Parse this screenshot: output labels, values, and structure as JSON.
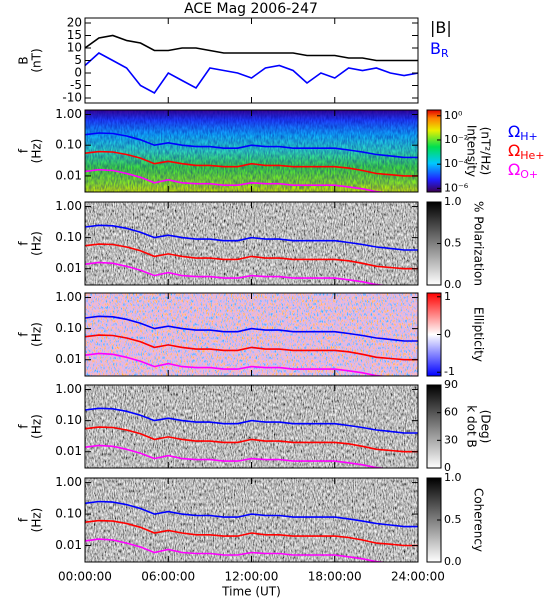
{
  "chart_data": [
    {
      "type": "line",
      "title": "ACE Mag 2006-247",
      "ylabel": [
        "B",
        "(nT)"
      ],
      "x": [
        0,
        1,
        2,
        3,
        4,
        5,
        6,
        7,
        8,
        9,
        10,
        11,
        12,
        13,
        14,
        15,
        16,
        17,
        18,
        19,
        20,
        21,
        22,
        23,
        24
      ],
      "xlim": [
        0,
        24
      ],
      "xticks": [
        0,
        6,
        12,
        18,
        24
      ],
      "ylim": [
        -12,
        22
      ],
      "yticks": [
        -10,
        -5,
        0,
        5,
        10,
        15,
        20
      ],
      "series": [
        {
          "name": "|B|",
          "color": "#000000",
          "values": [
            10,
            14,
            15,
            13,
            12,
            9,
            9,
            10,
            10,
            9,
            8,
            8,
            8,
            8,
            8,
            8,
            7,
            7,
            7,
            6,
            6,
            5,
            5,
            5,
            5
          ]
        },
        {
          "name": "B",
          "subscript": "R",
          "color": "#0000ff",
          "values": [
            3,
            8,
            5,
            2,
            -5,
            -8,
            0,
            -3,
            -6,
            2,
            1,
            0,
            -2,
            2,
            3,
            1,
            -4,
            0,
            -2,
            2,
            1,
            2,
            0,
            -1,
            0
          ]
        }
      ]
    },
    {
      "type": "spectrogram",
      "ylabel": [
        "f",
        "(Hz)"
      ],
      "log_y": true,
      "x": [
        0,
        1,
        2,
        3,
        4,
        5,
        6,
        7,
        8,
        9,
        10,
        11,
        12,
        13,
        14,
        15,
        16,
        17,
        18,
        19,
        20,
        21,
        22,
        23,
        24
      ],
      "xlim": [
        0,
        24
      ],
      "xticks": [
        0,
        6,
        12,
        18,
        24
      ],
      "ylim": [
        0.003,
        1.4
      ],
      "yticks": [
        0.01,
        {
          "value": 0.1,
          "label": "0.10"
        },
        {
          "value": 1,
          "label": "1.00"
        }
      ],
      "colorbar": {
        "label": [
          "Intensity",
          "(nT²/Hz)"
        ],
        "colormap": "rainbow",
        "log": true,
        "lim": [
          5e-07,
          3
        ],
        "ticks": [
          {
            "value": 1,
            "label": "10⁰"
          },
          {
            "value": 0.01,
            "label": "10⁻²"
          },
          {
            "value": 0.0001,
            "label": "10⁻⁴"
          },
          {
            "value": 1e-06,
            "label": "10⁻⁶"
          }
        ]
      },
      "series": [
        {
          "name": "Ω",
          "subscript": "H+",
          "color": "#0000ff",
          "values": [
            0.22,
            0.25,
            0.24,
            0.2,
            0.15,
            0.1,
            0.12,
            0.1,
            0.09,
            0.09,
            0.08,
            0.08,
            0.1,
            0.09,
            0.09,
            0.08,
            0.08,
            0.08,
            0.08,
            0.07,
            0.06,
            0.05,
            0.045,
            0.04,
            0.04
          ]
        },
        {
          "name": "Ω",
          "subscript": "He+",
          "color": "#ff0000",
          "values": [
            0.055,
            0.062,
            0.06,
            0.05,
            0.038,
            0.025,
            0.03,
            0.025,
            0.022,
            0.022,
            0.02,
            0.02,
            0.025,
            0.022,
            0.022,
            0.02,
            0.02,
            0.02,
            0.02,
            0.018,
            0.015,
            0.012,
            0.011,
            0.01,
            0.01
          ]
        },
        {
          "name": "Ω",
          "subscript": "O+",
          "color": "#ff00ff",
          "values": [
            0.014,
            0.016,
            0.015,
            0.012,
            0.009,
            0.006,
            0.0075,
            0.006,
            0.0056,
            0.0056,
            0.005,
            0.005,
            0.006,
            0.0056,
            0.0056,
            0.005,
            0.005,
            0.005,
            0.005,
            0.0044,
            0.0038,
            0.0031,
            0.0028,
            0.0025,
            0.0025
          ]
        }
      ]
    },
    {
      "type": "spectrogram",
      "ylabel": [
        "f",
        "(Hz)"
      ],
      "log_y": true,
      "x": [
        0,
        1,
        2,
        3,
        4,
        5,
        6,
        7,
        8,
        9,
        10,
        11,
        12,
        13,
        14,
        15,
        16,
        17,
        18,
        19,
        20,
        21,
        22,
        23,
        24
      ],
      "xlim": [
        0,
        24
      ],
      "xticks": [
        0,
        6,
        12,
        18,
        24
      ],
      "ylim": [
        0.003,
        1.4
      ],
      "yticks": [
        0.01,
        {
          "value": 0.1,
          "label": "0.10"
        },
        {
          "value": 1,
          "label": "1.00"
        }
      ],
      "colorbar": {
        "label": [
          "% Polarization"
        ],
        "colormap": "gray",
        "lim": [
          0,
          1
        ],
        "ticks": [
          {
            "value": 0,
            "label": "0.0"
          },
          0.5,
          {
            "value": 1,
            "label": "1.0"
          }
        ]
      },
      "series": [
        {
          "color": "#0000ff",
          "values": [
            0.22,
            0.25,
            0.24,
            0.2,
            0.15,
            0.1,
            0.12,
            0.1,
            0.09,
            0.09,
            0.08,
            0.08,
            0.1,
            0.09,
            0.09,
            0.08,
            0.08,
            0.08,
            0.08,
            0.07,
            0.06,
            0.05,
            0.045,
            0.04,
            0.04
          ]
        },
        {
          "color": "#ff0000",
          "values": [
            0.055,
            0.062,
            0.06,
            0.05,
            0.038,
            0.025,
            0.03,
            0.025,
            0.022,
            0.022,
            0.02,
            0.02,
            0.025,
            0.022,
            0.022,
            0.02,
            0.02,
            0.02,
            0.02,
            0.018,
            0.015,
            0.012,
            0.011,
            0.01,
            0.01
          ]
        },
        {
          "color": "#ff00ff",
          "values": [
            0.014,
            0.016,
            0.015,
            0.012,
            0.009,
            0.006,
            0.0075,
            0.006,
            0.0056,
            0.0056,
            0.005,
            0.005,
            0.006,
            0.0056,
            0.0056,
            0.005,
            0.005,
            0.005,
            0.005,
            0.0044,
            0.0038,
            0.0031,
            0.0028,
            0.0025,
            0.0025
          ]
        }
      ]
    },
    {
      "type": "spectrogram",
      "ylabel": [
        "f",
        "(Hz)"
      ],
      "log_y": true,
      "x": [
        0,
        1,
        2,
        3,
        4,
        5,
        6,
        7,
        8,
        9,
        10,
        11,
        12,
        13,
        14,
        15,
        16,
        17,
        18,
        19,
        20,
        21,
        22,
        23,
        24
      ],
      "xlim": [
        0,
        24
      ],
      "xticks": [
        0,
        6,
        12,
        18,
        24
      ],
      "ylim": [
        0.003,
        1.4
      ],
      "yticks": [
        0.01,
        {
          "value": 0.1,
          "label": "0.10"
        },
        {
          "value": 1,
          "label": "1.00"
        }
      ],
      "colorbar": {
        "label": [
          "Ellipticity"
        ],
        "colormap": "bwr",
        "lim": [
          -1.1,
          1.1
        ],
        "ticks": [
          -1,
          0,
          1
        ]
      },
      "series": [
        {
          "color": "#0000ff",
          "values": [
            0.22,
            0.25,
            0.24,
            0.2,
            0.15,
            0.1,
            0.12,
            0.1,
            0.09,
            0.09,
            0.08,
            0.08,
            0.1,
            0.09,
            0.09,
            0.08,
            0.08,
            0.08,
            0.08,
            0.07,
            0.06,
            0.05,
            0.045,
            0.04,
            0.04
          ]
        },
        {
          "color": "#ff0000",
          "values": [
            0.055,
            0.062,
            0.06,
            0.05,
            0.038,
            0.025,
            0.03,
            0.025,
            0.022,
            0.022,
            0.02,
            0.02,
            0.025,
            0.022,
            0.022,
            0.02,
            0.02,
            0.02,
            0.02,
            0.018,
            0.015,
            0.012,
            0.011,
            0.01,
            0.01
          ]
        },
        {
          "color": "#ff00ff",
          "values": [
            0.014,
            0.016,
            0.015,
            0.012,
            0.009,
            0.006,
            0.0075,
            0.006,
            0.0056,
            0.0056,
            0.005,
            0.005,
            0.006,
            0.0056,
            0.0056,
            0.005,
            0.005,
            0.005,
            0.005,
            0.0044,
            0.0038,
            0.0031,
            0.0028,
            0.0025,
            0.0025
          ]
        }
      ]
    },
    {
      "type": "spectrogram",
      "ylabel": [
        "f",
        "(Hz)"
      ],
      "log_y": true,
      "x": [
        0,
        1,
        2,
        3,
        4,
        5,
        6,
        7,
        8,
        9,
        10,
        11,
        12,
        13,
        14,
        15,
        16,
        17,
        18,
        19,
        20,
        21,
        22,
        23,
        24
      ],
      "xlim": [
        0,
        24
      ],
      "xticks": [
        0,
        6,
        12,
        18,
        24
      ],
      "ylim": [
        0.003,
        1.4
      ],
      "yticks": [
        0.01,
        {
          "value": 0.1,
          "label": "0.10"
        },
        {
          "value": 1,
          "label": "1.00"
        }
      ],
      "colorbar": {
        "label": [
          "k dot B",
          "(Deg)"
        ],
        "colormap": "gray",
        "lim": [
          0,
          90
        ],
        "ticks": [
          0,
          30,
          60,
          90
        ]
      },
      "series": [
        {
          "color": "#0000ff",
          "values": [
            0.22,
            0.25,
            0.24,
            0.2,
            0.15,
            0.1,
            0.12,
            0.1,
            0.09,
            0.09,
            0.08,
            0.08,
            0.1,
            0.09,
            0.09,
            0.08,
            0.08,
            0.08,
            0.08,
            0.07,
            0.06,
            0.05,
            0.045,
            0.04,
            0.04
          ]
        },
        {
          "color": "#ff0000",
          "values": [
            0.055,
            0.062,
            0.06,
            0.05,
            0.038,
            0.025,
            0.03,
            0.025,
            0.022,
            0.022,
            0.02,
            0.02,
            0.025,
            0.022,
            0.022,
            0.02,
            0.02,
            0.02,
            0.02,
            0.018,
            0.015,
            0.012,
            0.011,
            0.01,
            0.01
          ]
        },
        {
          "color": "#ff00ff",
          "values": [
            0.014,
            0.016,
            0.015,
            0.012,
            0.009,
            0.006,
            0.0075,
            0.006,
            0.0056,
            0.0056,
            0.005,
            0.005,
            0.006,
            0.0056,
            0.0056,
            0.005,
            0.005,
            0.005,
            0.005,
            0.0044,
            0.0038,
            0.0031,
            0.0028,
            0.0025,
            0.0025
          ]
        }
      ]
    },
    {
      "type": "spectrogram",
      "ylabel": [
        "f",
        "(Hz)"
      ],
      "log_y": true,
      "xlabel": "Time (UT)",
      "x": [
        0,
        1,
        2,
        3,
        4,
        5,
        6,
        7,
        8,
        9,
        10,
        11,
        12,
        13,
        14,
        15,
        16,
        17,
        18,
        19,
        20,
        21,
        22,
        23,
        24
      ],
      "xlim": [
        0,
        24
      ],
      "xticks": [
        {
          "value": 0,
          "label": "00:00:00"
        },
        {
          "value": 6,
          "label": "06:00:00"
        },
        {
          "value": 12,
          "label": "12:00:00"
        },
        {
          "value": 18,
          "label": "18:00:00"
        },
        {
          "value": 24,
          "label": "24:00:00"
        }
      ],
      "ylim": [
        0.003,
        1.4
      ],
      "yticks": [
        0.01,
        {
          "value": 0.1,
          "label": "0.10"
        },
        {
          "value": 1,
          "label": "1.00"
        }
      ],
      "colorbar": {
        "label": [
          "Coherency"
        ],
        "colormap": "gray",
        "lim": [
          0,
          1
        ],
        "ticks": [
          {
            "value": 0,
            "label": "0.0"
          },
          0.5,
          {
            "value": 1,
            "label": "1.0"
          }
        ]
      },
      "series": [
        {
          "color": "#0000ff",
          "values": [
            0.22,
            0.25,
            0.24,
            0.2,
            0.15,
            0.1,
            0.12,
            0.1,
            0.09,
            0.09,
            0.08,
            0.08,
            0.1,
            0.09,
            0.09,
            0.08,
            0.08,
            0.08,
            0.08,
            0.07,
            0.06,
            0.05,
            0.045,
            0.04,
            0.04
          ]
        },
        {
          "color": "#ff0000",
          "values": [
            0.055,
            0.062,
            0.06,
            0.05,
            0.038,
            0.025,
            0.03,
            0.025,
            0.022,
            0.022,
            0.02,
            0.02,
            0.025,
            0.022,
            0.022,
            0.02,
            0.02,
            0.02,
            0.02,
            0.018,
            0.015,
            0.012,
            0.011,
            0.01,
            0.01
          ]
        },
        {
          "color": "#ff00ff",
          "values": [
            0.014,
            0.016,
            0.015,
            0.012,
            0.009,
            0.006,
            0.0075,
            0.006,
            0.0056,
            0.0056,
            0.005,
            0.005,
            0.006,
            0.0056,
            0.0056,
            0.005,
            0.005,
            0.005,
            0.005,
            0.0044,
            0.0038,
            0.0031,
            0.0028,
            0.0025,
            0.0025
          ]
        }
      ]
    }
  ]
}
